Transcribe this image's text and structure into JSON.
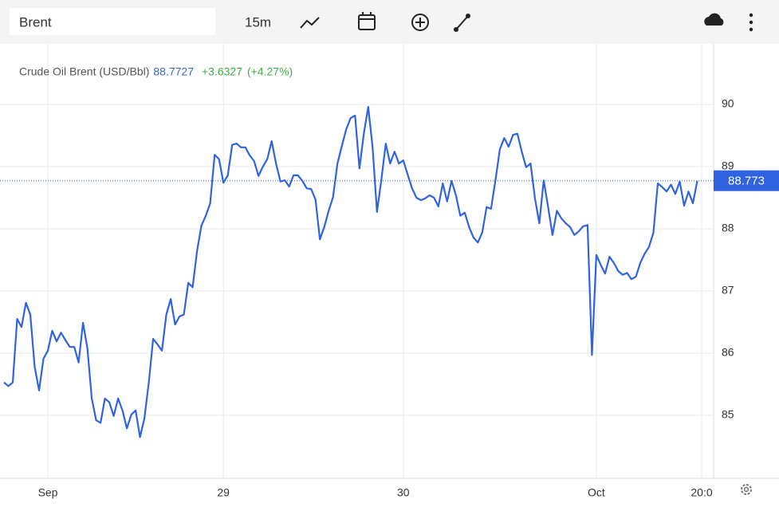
{
  "toolbar": {
    "symbol": "Brent",
    "interval": "15m"
  },
  "chart_data": {
    "type": "line",
    "title": "Crude Oil Brent (USD/Bbl)",
    "last": "88.7727",
    "change": "+3.6327",
    "change_pct": "(+4.27%)",
    "categories": [
      null,
      null,
      null,
      null,
      null,
      null,
      null,
      null,
      null,
      null,
      "Sep",
      null,
      null,
      null,
      null,
      null,
      null,
      null,
      null,
      null,
      null,
      null,
      null,
      null,
      null,
      null,
      null,
      null,
      null,
      null,
      null,
      null,
      null,
      null,
      null,
      null,
      null,
      null,
      null,
      null,
      null,
      null,
      null,
      null,
      null,
      null,
      null,
      null,
      null,
      null,
      "29",
      null,
      null,
      null,
      null,
      null,
      null,
      null,
      null,
      null,
      null,
      null,
      null,
      null,
      null,
      null,
      null,
      null,
      null,
      null,
      null,
      null,
      null,
      null,
      null,
      null,
      null,
      null,
      null,
      null,
      null,
      null,
      null,
      null,
      null,
      null,
      null,
      null,
      null,
      null,
      null,
      "30",
      null,
      null,
      null,
      null,
      null,
      null,
      null,
      null,
      null,
      null,
      null,
      null,
      null,
      null,
      null,
      null,
      null,
      null,
      null,
      null,
      null,
      null,
      null,
      null,
      null,
      null,
      null,
      null,
      null,
      null,
      null,
      null,
      null,
      null,
      null,
      null,
      null,
      null,
      null,
      null,
      null,
      null,
      null,
      "Oct",
      null,
      null,
      null,
      null,
      null,
      null,
      null,
      null,
      null,
      null,
      null,
      null,
      null,
      null,
      null,
      null,
      null,
      null,
      null,
      null,
      null,
      null,
      null,
      "20:0"
    ],
    "series": [
      {
        "name": "Crude Oil Brent (USD/Bbl)",
        "color": "#2f63e0",
        "values": [
          85.53,
          85.47,
          85.53,
          86.55,
          86.42,
          86.81,
          86.62,
          85.78,
          85.4,
          85.91,
          86.04,
          86.36,
          86.19,
          86.33,
          86.21,
          86.1,
          86.1,
          85.85,
          86.49,
          86.08,
          85.27,
          84.92,
          84.88,
          85.27,
          85.21,
          84.99,
          85.27,
          85.08,
          84.79,
          85.01,
          85.08,
          84.65,
          84.95,
          85.53,
          86.23,
          86.14,
          86.04,
          86.62,
          86.87,
          86.46,
          86.59,
          86.62,
          87.13,
          87.06,
          87.64,
          88.05,
          88.21,
          88.41,
          89.19,
          89.12,
          88.74,
          88.86,
          89.35,
          89.37,
          89.31,
          89.31,
          89.18,
          89.09,
          88.85,
          89.0,
          89.12,
          89.41,
          89.05,
          88.76,
          88.78,
          88.68,
          88.86,
          88.86,
          88.77,
          88.65,
          88.64,
          88.47,
          87.83,
          88.03,
          88.29,
          88.51,
          89.05,
          89.33,
          89.6,
          89.78,
          89.82,
          88.97,
          89.53,
          89.96,
          89.31,
          88.27,
          88.79,
          89.37,
          89.05,
          89.24,
          89.05,
          89.1,
          88.87,
          88.65,
          88.5,
          88.46,
          88.49,
          88.54,
          88.5,
          88.36,
          88.73,
          88.44,
          88.77,
          88.54,
          88.21,
          88.26,
          88.03,
          87.86,
          87.78,
          87.94,
          88.35,
          88.32,
          88.78,
          89.28,
          89.46,
          89.32,
          89.51,
          89.53,
          89.24,
          88.99,
          89.05,
          88.49,
          88.09,
          88.78,
          88.35,
          87.9,
          88.29,
          88.17,
          88.09,
          88.03,
          87.9,
          87.96,
          88.04,
          88.06,
          85.97,
          87.58,
          87.42,
          87.28,
          87.55,
          87.45,
          87.32,
          87.26,
          87.29,
          87.19,
          87.23,
          87.45,
          87.6,
          87.71,
          87.94,
          88.73,
          88.67,
          88.6,
          88.71,
          88.56,
          88.76,
          88.37,
          88.6,
          88.41,
          88.77,
          null
        ]
      }
    ],
    "current_value": 88.773,
    "ylim": [
      84,
      91
    ],
    "yticks": [
      85,
      86,
      87,
      88,
      89,
      90
    ],
    "grid": true
  }
}
